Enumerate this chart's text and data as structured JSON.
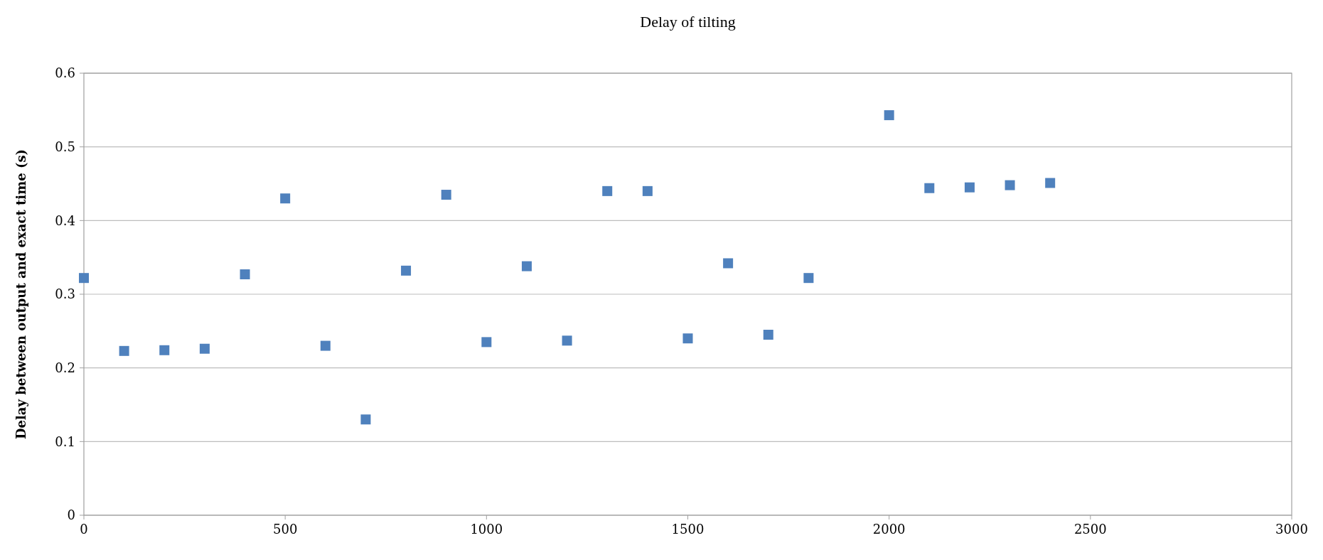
{
  "chart_data": {
    "type": "scatter",
    "title": "Delay of tilting",
    "ylabel": "Delay between output and exact time (s)",
    "x": [
      0,
      100,
      200,
      300,
      400,
      500,
      600,
      700,
      800,
      900,
      1000,
      1100,
      1200,
      1300,
      1400,
      1500,
      1600,
      1700,
      1800,
      2000,
      2100,
      2200,
      2300,
      2400
    ],
    "values": [
      0.322,
      0.223,
      0.224,
      0.226,
      0.327,
      0.43,
      0.23,
      0.13,
      0.332,
      0.435,
      0.235,
      0.338,
      0.237,
      0.44,
      0.44,
      0.24,
      0.342,
      0.245,
      0.322,
      0.543,
      0.444,
      0.445,
      0.448,
      0.451
    ],
    "color": "#4f81bd",
    "marker": "square",
    "xlim": [
      0,
      3000
    ],
    "xticks": [
      0,
      500,
      1000,
      1500,
      2000,
      2500,
      3000
    ],
    "ylim": [
      0,
      0.6
    ],
    "yticks": [
      0,
      0.1,
      0.2,
      0.3,
      0.4,
      0.5,
      0.6
    ],
    "grid": "y"
  }
}
